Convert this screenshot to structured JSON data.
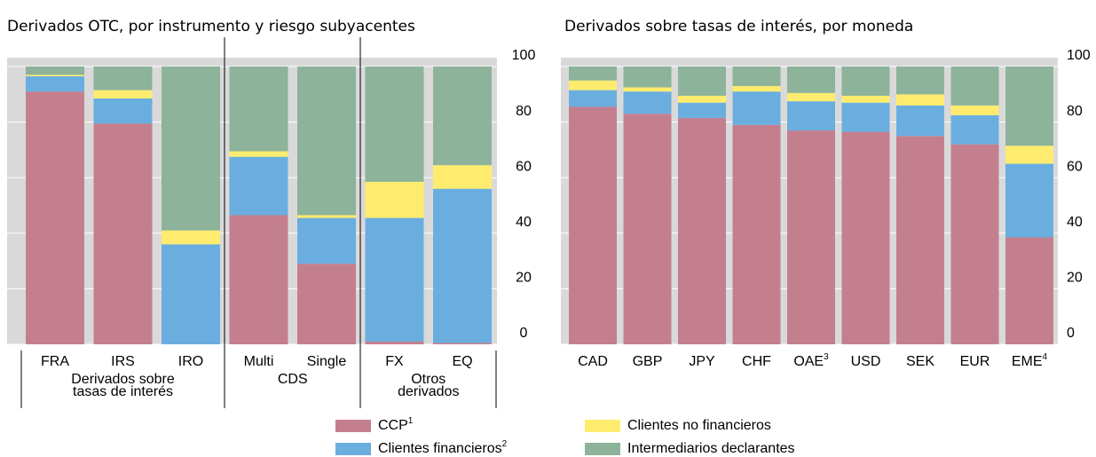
{
  "chart_data": [
    {
      "type": "stacked_bar",
      "title": "Derivados OTC, por instrumento y riesgo subyacentes",
      "categories": [
        "FRA",
        "IRS",
        "IRO",
        "Multi",
        "Single",
        "FX",
        "EQ"
      ],
      "groups": [
        {
          "lines": [
            "Derivados sobre",
            "tasas de interés"
          ],
          "start": 0,
          "end": 2
        },
        {
          "lines": [
            "CDS"
          ],
          "start": 3,
          "end": 4
        },
        {
          "lines": [
            "Otros",
            "derivados"
          ],
          "start": 5,
          "end": 6
        }
      ],
      "series": [
        {
          "name": "CCP",
          "note": "1",
          "color": "#c47f8e",
          "values": [
            91,
            79.5,
            0,
            46.5,
            29,
            1,
            0.5
          ]
        },
        {
          "name": "Clientes financieros",
          "note": "2",
          "color": "#6aaee0",
          "values": [
            5.5,
            9,
            36,
            21,
            16.5,
            44.5,
            55.5
          ]
        },
        {
          "name": "Clientes no financieros",
          "color": "#ffec6e",
          "values": [
            0.5,
            3,
            5,
            2,
            1,
            13,
            8.5
          ]
        },
        {
          "name": "Intermediarios declarantes",
          "color": "#8db39a",
          "values": [
            3,
            8.5,
            59,
            30.5,
            53.5,
            41.5,
            35.5
          ]
        }
      ],
      "ylim": [
        0,
        100
      ],
      "yticks": [
        0,
        20,
        40,
        60,
        80,
        100
      ],
      "grid": true
    },
    {
      "type": "stacked_bar",
      "title": "Derivados sobre tasas de interés, por moneda",
      "categories": [
        "CAD",
        "GBP",
        "JPY",
        "CHF",
        "OAE",
        "USD",
        "SEK",
        "EUR",
        "EME"
      ],
      "category_notes": [
        null,
        null,
        null,
        null,
        "3",
        null,
        null,
        null,
        "4"
      ],
      "series": [
        {
          "color": "#c47f8e",
          "values": [
            85.5,
            83,
            81.5,
            79,
            77,
            76.5,
            75,
            72,
            38.5
          ]
        },
        {
          "color": "#6aaee0",
          "values": [
            6,
            8,
            5.5,
            12,
            10.5,
            10.5,
            11,
            10.5,
            26.5
          ]
        },
        {
          "color": "#ffec6e",
          "values": [
            3.5,
            1.5,
            2.5,
            2,
            3,
            2.5,
            4,
            3.5,
            6.5
          ]
        },
        {
          "color": "#8db39a",
          "values": [
            5,
            7.5,
            10.5,
            7,
            9.5,
            10.5,
            10,
            14,
            28.5
          ]
        }
      ],
      "ylim": [
        0,
        100
      ],
      "yticks": [
        0,
        20,
        40,
        60,
        80,
        100
      ],
      "grid": true
    }
  ]
}
